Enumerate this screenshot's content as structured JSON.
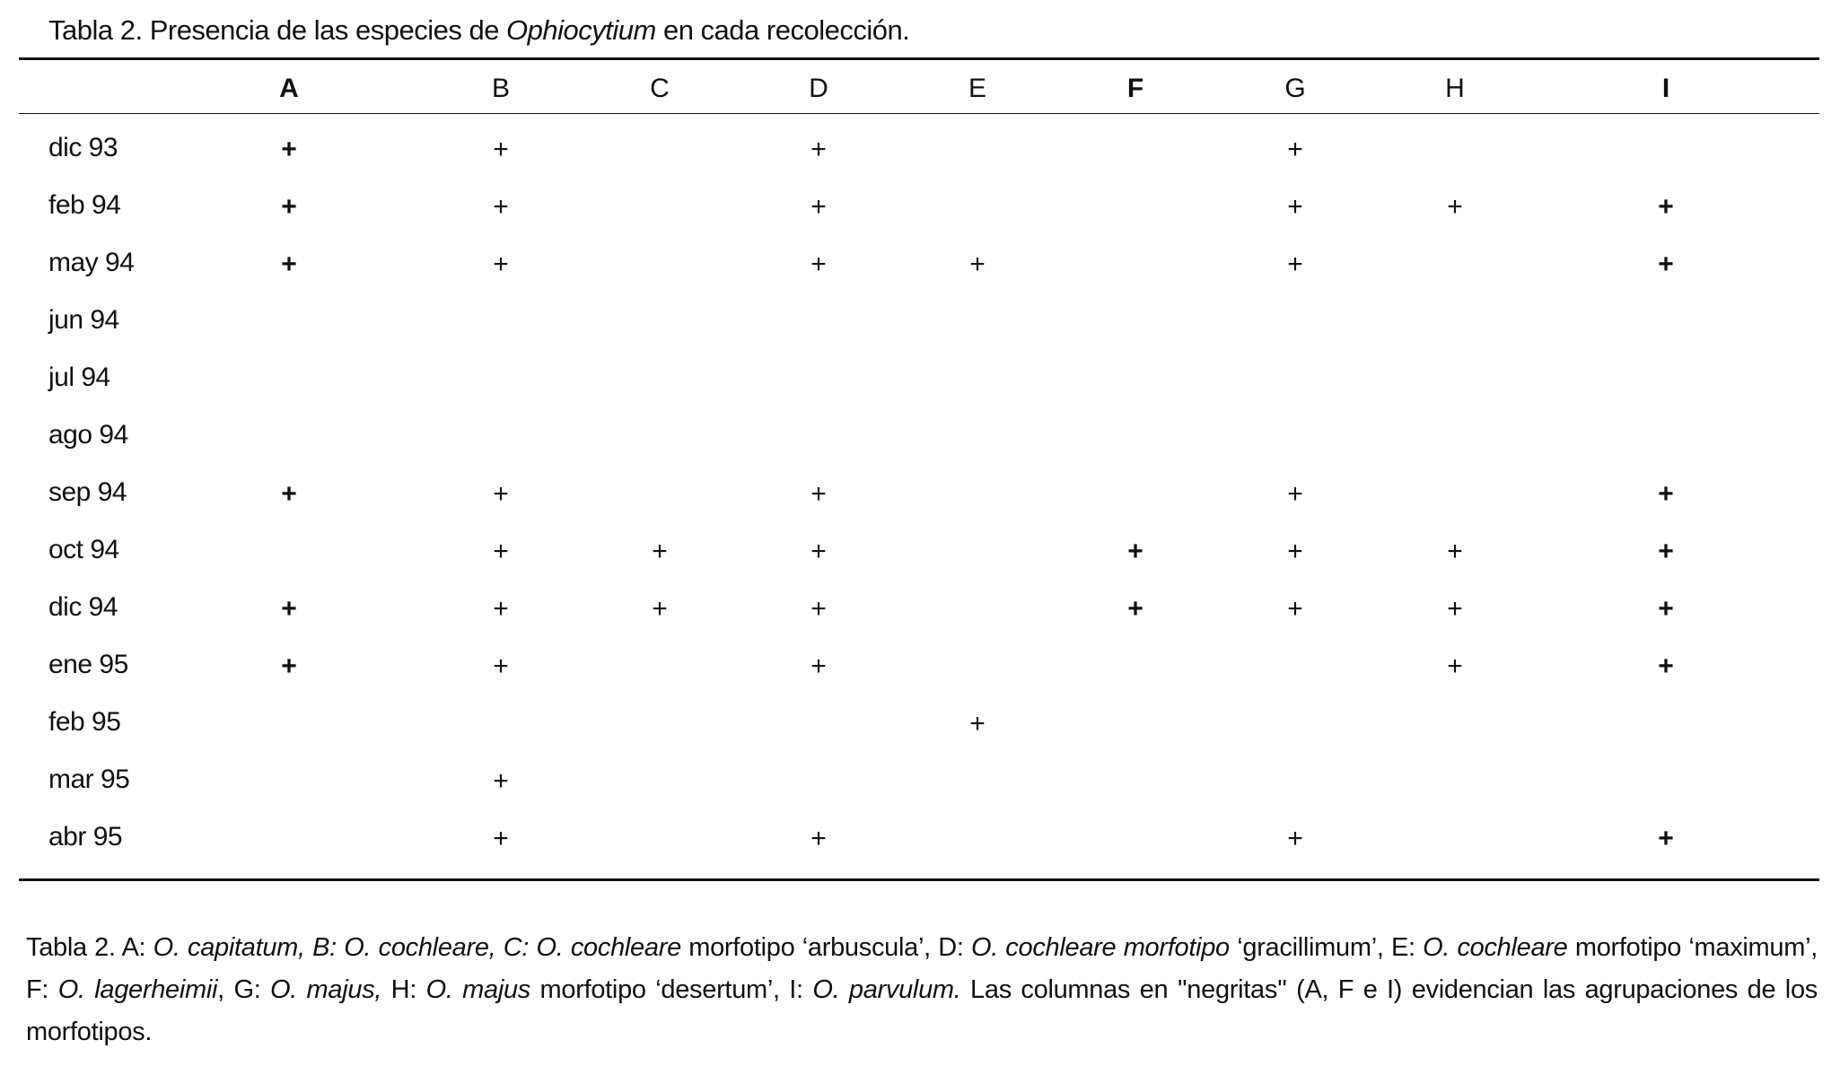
{
  "title": [
    {
      "text": "Tabla 2. Presencia de las especies de ",
      "italic": false
    },
    {
      "text": "Ophiocytium",
      "italic": true
    },
    {
      "text": " en cada recolección.",
      "italic": false
    }
  ],
  "table": {
    "header": [
      {
        "text": "A",
        "bold": true
      },
      {
        "text": "B",
        "bold": false
      },
      {
        "text": "C",
        "bold": false
      },
      {
        "text": "D",
        "bold": false
      },
      {
        "text": "E",
        "bold": false
      },
      {
        "text": "F",
        "bold": true
      },
      {
        "text": "G",
        "bold": false
      },
      {
        "text": "H",
        "bold": false
      },
      {
        "text": "I",
        "bold": true
      }
    ],
    "rows": [
      {
        "label": "dic 93",
        "cells": [
          "+",
          "+",
          null,
          "+",
          null,
          null,
          "+",
          null,
          null
        ]
      },
      {
        "label": "feb 94",
        "cells": [
          "+",
          "+",
          null,
          "+",
          null,
          null,
          "+",
          "+",
          "+"
        ]
      },
      {
        "label": "may 94",
        "cells": [
          "+",
          "+",
          null,
          "+",
          "+",
          null,
          "+",
          null,
          "+"
        ]
      },
      {
        "label": "jun 94",
        "cells": [
          null,
          null,
          null,
          null,
          null,
          null,
          null,
          null,
          null
        ]
      },
      {
        "label": "jul 94",
        "cells": [
          null,
          null,
          null,
          null,
          null,
          null,
          null,
          null,
          null
        ]
      },
      {
        "label": "ago 94",
        "cells": [
          null,
          null,
          null,
          null,
          null,
          null,
          null,
          null,
          null
        ]
      },
      {
        "label": "sep 94",
        "cells": [
          "+",
          "+",
          null,
          "+",
          null,
          null,
          "+",
          null,
          "+"
        ]
      },
      {
        "label": "oct 94",
        "cells": [
          null,
          "+",
          "+",
          "+",
          null,
          "+",
          "+",
          "+",
          "+"
        ]
      },
      {
        "label": "dic 94",
        "cells": [
          "+",
          "+",
          "+",
          "+",
          null,
          "+",
          "+",
          "+",
          "+"
        ]
      },
      {
        "label": "ene 95",
        "cells": [
          "+",
          "+",
          null,
          "+",
          null,
          null,
          null,
          "+",
          "+"
        ]
      },
      {
        "label": "feb 95",
        "cells": [
          null,
          null,
          null,
          null,
          "+",
          null,
          null,
          null,
          null
        ]
      },
      {
        "label": "mar 95",
        "cells": [
          null,
          "+",
          null,
          null,
          null,
          null,
          null,
          null,
          null
        ]
      },
      {
        "label": "abr 95",
        "cells": [
          null,
          "+",
          null,
          "+",
          null,
          null,
          "+",
          null,
          "+"
        ]
      }
    ]
  },
  "caption": [
    {
      "text": "Tabla 2. A: ",
      "italic": false
    },
    {
      "text": "O. capitatum, B: O. cochleare, C: O. cochleare",
      "italic": true
    },
    {
      "text": " morfotipo ‘arbuscula’, D: ",
      "italic": false
    },
    {
      "text": "O. cochleare morfotipo",
      "italic": true
    },
    {
      "text": " ‘gracillimum’, E: ",
      "italic": false
    },
    {
      "text": "O. cochleare",
      "italic": true
    },
    {
      "text": " morfotipo ‘maximum’, F: ",
      "italic": false
    },
    {
      "text": "O. lagerheimii",
      "italic": true
    },
    {
      "text": ", G: ",
      "italic": false
    },
    {
      "text": "O. majus,",
      "italic": true
    },
    {
      "text": " H: ",
      "italic": false
    },
    {
      "text": "O. majus",
      "italic": true
    },
    {
      "text": " morfotipo ‘desertum’, I: ",
      "italic": false
    },
    {
      "text": "O. parvulum.",
      "italic": true
    },
    {
      "text": " Las columnas en ''negritas'' (A, F e I) evidencian las agrupaciones de los morfotipos.",
      "italic": false
    }
  ]
}
